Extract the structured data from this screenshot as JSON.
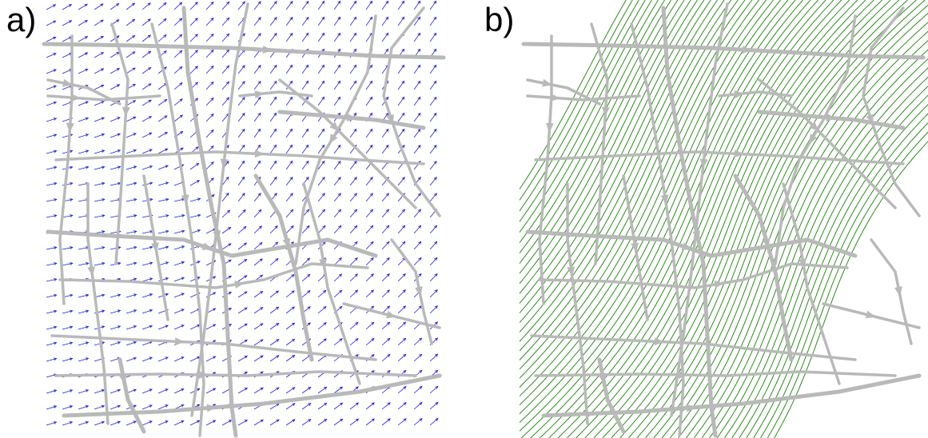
{
  "panels": [
    {
      "label": "a)",
      "content": "vector-field",
      "vector_color": "#1f1fd6"
    },
    {
      "label": "b)",
      "content": "streamlines",
      "line_color": "#2e8b1e"
    }
  ],
  "road_color": "#b9b9b9"
}
